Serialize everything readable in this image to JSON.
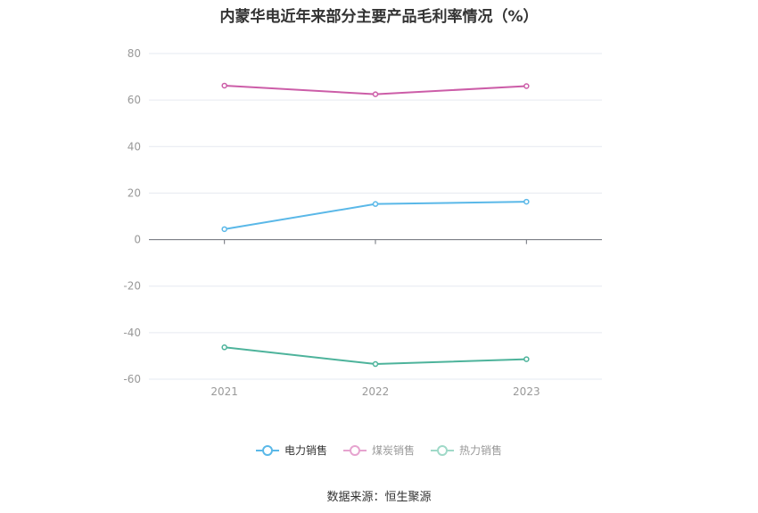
{
  "chart_data": {
    "type": "line",
    "title": "内蒙华电近年来部分主要产品毛利率情况（%）",
    "categories": [
      "2021",
      "2022",
      "2023"
    ],
    "series": [
      {
        "name": "电力销售",
        "values": [
          4.5,
          15.3,
          16.3
        ],
        "color": "#5ab8e8"
      },
      {
        "name": "煤炭销售",
        "values": [
          66.2,
          62.5,
          66.0
        ],
        "color": "#cc5da8"
      },
      {
        "name": "热力销售",
        "values": [
          -46.3,
          -53.5,
          -51.4
        ],
        "color": "#4db39b"
      }
    ],
    "ylim": [
      -60,
      80
    ],
    "yticks": [
      80,
      60,
      40,
      20,
      0,
      -20,
      -40,
      -60
    ],
    "grid": true,
    "legend_position": "bottom"
  },
  "legend": {
    "items": [
      {
        "label": "电力销售",
        "color": "#5ab8e8",
        "active": true
      },
      {
        "label": "煤炭销售",
        "color": "#e6a3cf",
        "active": false
      },
      {
        "label": "热力销售",
        "color": "#9fd9c8",
        "active": false
      }
    ]
  },
  "source": "数据来源：恒生聚源"
}
